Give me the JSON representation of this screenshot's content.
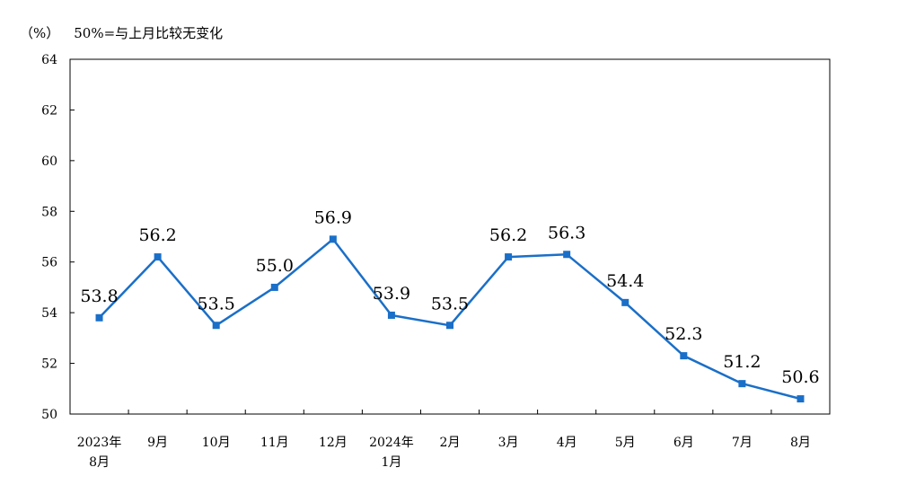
{
  "chart_data": {
    "type": "line",
    "unit": "（%）",
    "note": "50%=与上月比较无变化",
    "categories": [
      [
        "2023年",
        "8月"
      ],
      [
        "9月"
      ],
      [
        "10月"
      ],
      [
        "11月"
      ],
      [
        "12月"
      ],
      [
        "2024年",
        "1月"
      ],
      [
        "2月"
      ],
      [
        "3月"
      ],
      [
        "4月"
      ],
      [
        "5月"
      ],
      [
        "6月"
      ],
      [
        "7月"
      ],
      [
        "8月"
      ]
    ],
    "series": [
      {
        "values": [
          53.8,
          56.2,
          53.5,
          55.0,
          56.9,
          53.9,
          53.5,
          56.2,
          56.3,
          54.4,
          52.3,
          51.2,
          50.6
        ]
      }
    ],
    "data_labels": [
      "53.8",
      "56.2",
      "53.5",
      "55.0",
      "56.9",
      "53.9",
      "53.5",
      "56.2",
      "56.3",
      "54.4",
      "52.3",
      "51.2",
      "50.6"
    ],
    "y_ticks": [
      "50",
      "52",
      "54",
      "56",
      "58",
      "60",
      "62",
      "64"
    ],
    "ylim": [
      50,
      64
    ],
    "grid": false,
    "line_color": "#1a6fc8",
    "marker": "square"
  }
}
